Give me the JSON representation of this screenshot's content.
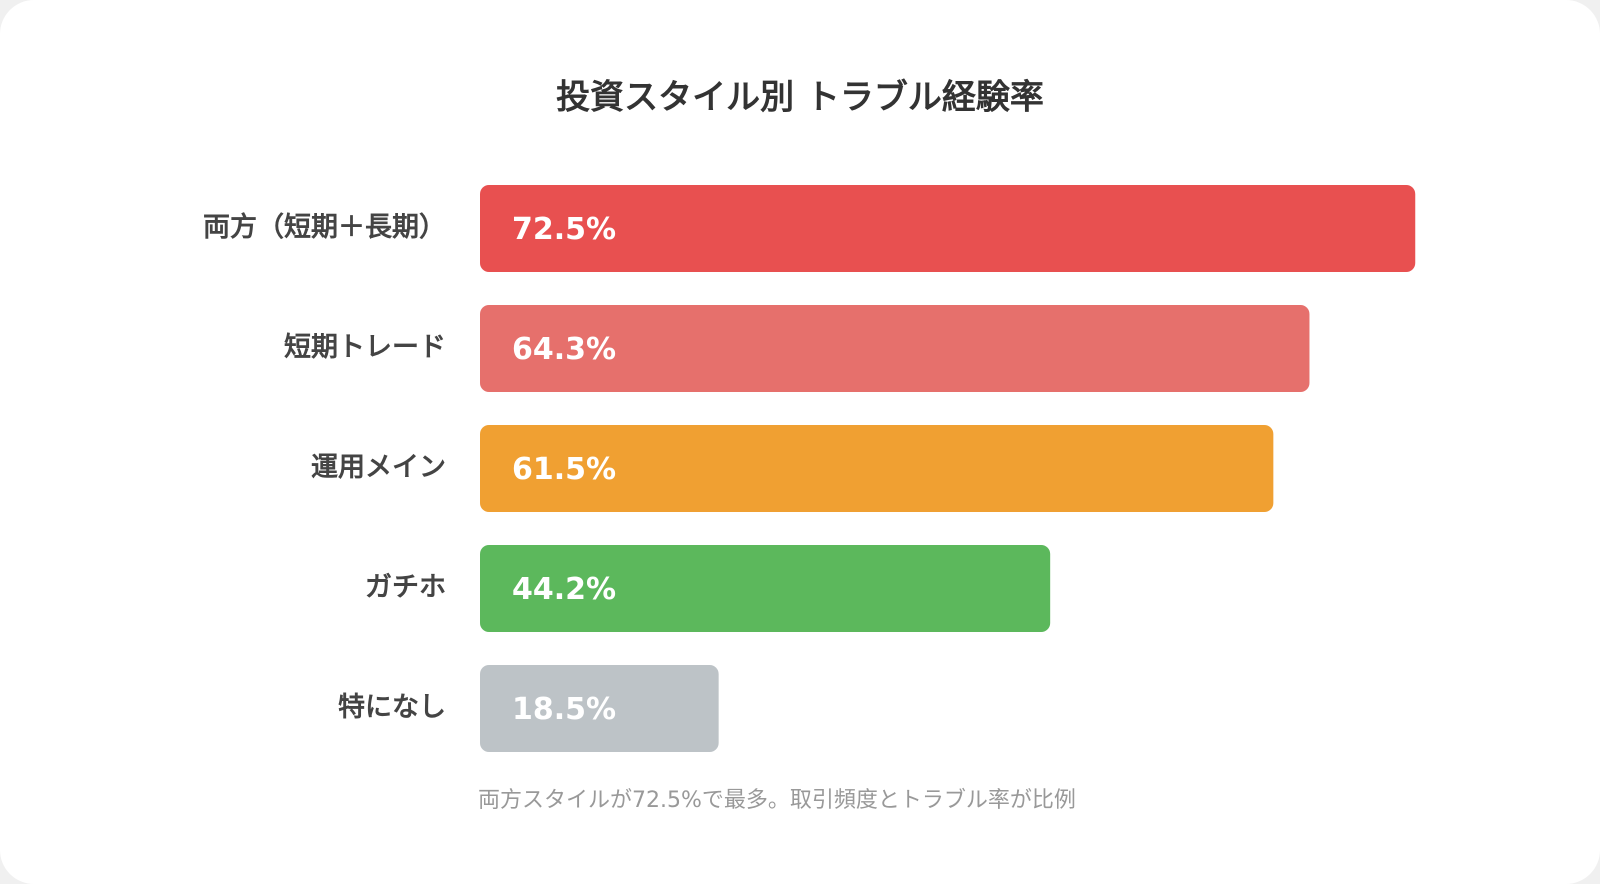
{
  "chart_data": {
    "type": "bar",
    "orientation": "horizontal",
    "title": "投資スタイル別 トラブル経験率",
    "categories": [
      "両方（短期＋長期）",
      "短期トレード",
      "運用メイン",
      "ガチホ",
      "特になし"
    ],
    "values": [
      72.5,
      64.3,
      61.5,
      44.2,
      18.5
    ],
    "value_labels": [
      "72.5%",
      "64.3%",
      "61.5%",
      "44.2%",
      "18.5%"
    ],
    "colors": [
      "#e85050",
      "#e6706c",
      "#f0a032",
      "#5cb85c",
      "#bdc3c7"
    ],
    "note": "両方スタイルが72.5%で最多。取引頻度とトラブル率が比例"
  }
}
